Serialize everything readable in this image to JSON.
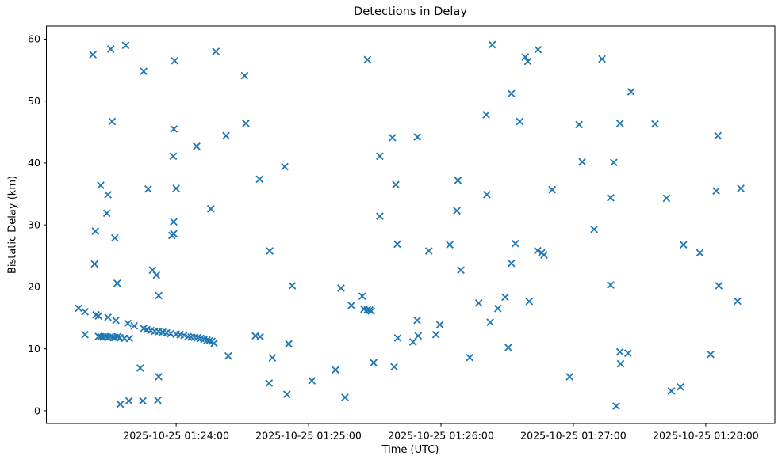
{
  "figure": {
    "title": "Detections in Delay",
    "xlabel": "Time (UTC)",
    "ylabel": "Bistatic Delay (km)"
  },
  "chart_data": {
    "type": "scatter",
    "title": "Detections in Delay",
    "xlabel": "Time (UTC)",
    "ylabel": "Bistatic Delay (km)",
    "marker": "x",
    "marker_color": "#1f77b4",
    "grid": false,
    "legend": null,
    "x_unit": "seconds after 2025-10-25 01:23:00 UTC",
    "xlim_s": [
      1.2,
      331.3
    ],
    "ylim": [
      -2.05,
      62.1
    ],
    "x_ticks": [
      {
        "s": 60,
        "label": "2025-10-25 01:24:00"
      },
      {
        "s": 120,
        "label": "2025-10-25 01:25:00"
      },
      {
        "s": 180,
        "label": "2025-10-25 01:26:00"
      },
      {
        "s": 240,
        "label": "2025-10-25 01:27:00"
      },
      {
        "s": 300,
        "label": "2025-10-25 01:28:00"
      }
    ],
    "y_ticks": [
      0,
      10,
      20,
      30,
      40,
      50,
      60
    ],
    "points_t_s_km": [
      [
        22.3,
        57.5
      ],
      [
        30.4,
        58.4
      ],
      [
        37.1,
        59.0
      ],
      [
        45.3,
        54.8
      ],
      [
        59.3,
        56.5
      ],
      [
        78.0,
        58.0
      ],
      [
        91.0,
        54.1
      ],
      [
        146.7,
        56.7
      ],
      [
        203.2,
        59.1
      ],
      [
        218.2,
        57.1
      ],
      [
        219.4,
        56.4
      ],
      [
        224.0,
        58.3
      ],
      [
        253.0,
        56.8
      ],
      [
        211.9,
        51.2
      ],
      [
        266.1,
        51.5
      ],
      [
        31.0,
        46.7
      ],
      [
        59.0,
        45.5
      ],
      [
        82.6,
        44.4
      ],
      [
        91.6,
        46.4
      ],
      [
        69.3,
        42.7
      ],
      [
        58.7,
        41.1
      ],
      [
        152.3,
        41.1
      ],
      [
        158.0,
        44.1
      ],
      [
        169.3,
        44.2
      ],
      [
        109.2,
        39.4
      ],
      [
        97.8,
        37.4
      ],
      [
        200.5,
        47.8
      ],
      [
        215.7,
        46.7
      ],
      [
        242.6,
        46.2
      ],
      [
        261.1,
        46.4
      ],
      [
        277.0,
        46.3
      ],
      [
        305.5,
        44.4
      ],
      [
        244.0,
        40.2
      ],
      [
        258.3,
        40.1
      ],
      [
        187.7,
        37.2
      ],
      [
        230.4,
        35.7
      ],
      [
        200.8,
        34.9
      ],
      [
        304.7,
        35.5
      ],
      [
        315.9,
        35.9
      ],
      [
        256.9,
        34.4
      ],
      [
        282.2,
        34.3
      ],
      [
        187.2,
        32.3
      ],
      [
        249.4,
        29.3
      ],
      [
        159.5,
        36.5
      ],
      [
        25.8,
        36.4
      ],
      [
        29.1,
        34.9
      ],
      [
        47.3,
        35.8
      ],
      [
        60.0,
        35.9
      ],
      [
        75.7,
        32.6
      ],
      [
        28.6,
        31.9
      ],
      [
        58.9,
        30.5
      ],
      [
        152.3,
        31.4
      ],
      [
        23.4,
        29.0
      ],
      [
        58.9,
        28.6
      ],
      [
        32.2,
        27.9
      ],
      [
        58.1,
        28.3
      ],
      [
        102.4,
        25.8
      ],
      [
        23.0,
        23.7
      ],
      [
        49.3,
        22.7
      ],
      [
        51.1,
        21.9
      ],
      [
        33.3,
        20.6
      ],
      [
        112.6,
        20.2
      ],
      [
        134.7,
        19.8
      ],
      [
        144.3,
        18.5
      ],
      [
        139.4,
        17.0
      ],
      [
        52.1,
        18.6
      ],
      [
        145.1,
        16.4
      ],
      [
        146.6,
        16.3
      ],
      [
        147.7,
        16.25
      ],
      [
        148.4,
        16.1
      ],
      [
        160.2,
        26.9
      ],
      [
        174.5,
        25.8
      ],
      [
        184.0,
        26.8
      ],
      [
        213.7,
        27.0
      ],
      [
        223.8,
        25.85
      ],
      [
        225.6,
        25.5
      ],
      [
        226.7,
        25.15
      ],
      [
        211.9,
        23.8
      ],
      [
        189.0,
        22.7
      ],
      [
        289.9,
        26.8
      ],
      [
        297.3,
        25.5
      ],
      [
        305.9,
        20.2
      ],
      [
        256.9,
        20.3
      ],
      [
        314.4,
        17.7
      ],
      [
        197.1,
        17.4
      ],
      [
        209.1,
        18.35
      ],
      [
        205.8,
        16.5
      ],
      [
        220.0,
        17.65
      ],
      [
        15.8,
        16.55
      ],
      [
        18.7,
        16.0
      ],
      [
        23.7,
        15.5
      ],
      [
        24.8,
        15.3
      ],
      [
        29.1,
        15.1
      ],
      [
        32.7,
        14.6
      ],
      [
        38.1,
        14.1
      ],
      [
        41.0,
        13.7
      ],
      [
        45.3,
        13.3
      ],
      [
        46.7,
        13.1
      ],
      [
        48.5,
        12.95
      ],
      [
        50.3,
        12.85
      ],
      [
        52.1,
        12.8
      ],
      [
        53.9,
        12.7
      ],
      [
        55.7,
        12.6
      ],
      [
        57.5,
        12.45
      ],
      [
        60.0,
        12.35
      ],
      [
        61.8,
        12.3
      ],
      [
        63.6,
        12.2
      ],
      [
        65.4,
        11.95
      ],
      [
        66.8,
        11.9
      ],
      [
        68.3,
        11.85
      ],
      [
        69.7,
        11.8
      ],
      [
        71.1,
        11.7
      ],
      [
        72.6,
        11.55
      ],
      [
        74.0,
        11.4
      ],
      [
        75.1,
        11.3
      ],
      [
        76.2,
        11.2
      ],
      [
        77.2,
        10.9
      ],
      [
        18.7,
        12.3
      ],
      [
        24.8,
        12.0
      ],
      [
        25.9,
        11.95
      ],
      [
        26.9,
        11.9
      ],
      [
        28.0,
        11.95
      ],
      [
        29.1,
        11.8
      ],
      [
        30.2,
        11.95
      ],
      [
        31.3,
        11.9
      ],
      [
        32.3,
        11.8
      ],
      [
        33.4,
        11.95
      ],
      [
        34.5,
        11.8
      ],
      [
        36.6,
        11.7
      ],
      [
        38.8,
        11.7
      ],
      [
        95.9,
        12.1
      ],
      [
        98.1,
        11.95
      ],
      [
        111.0,
        10.8
      ],
      [
        169.7,
        12.1
      ],
      [
        177.7,
        12.3
      ],
      [
        160.4,
        11.75
      ],
      [
        167.3,
        11.1
      ],
      [
        169.2,
        14.6
      ],
      [
        179.5,
        13.9
      ],
      [
        202.3,
        14.3
      ],
      [
        210.5,
        10.2
      ],
      [
        193.0,
        8.6
      ],
      [
        238.3,
        5.5
      ],
      [
        43.7,
        6.9
      ],
      [
        52.1,
        5.5
      ],
      [
        34.7,
        1.05
      ],
      [
        38.6,
        1.6
      ],
      [
        44.9,
        1.6
      ],
      [
        51.7,
        1.7
      ],
      [
        83.6,
        8.85
      ],
      [
        103.6,
        8.55
      ],
      [
        102.1,
        4.45
      ],
      [
        110.2,
        2.65
      ],
      [
        121.5,
        4.85
      ],
      [
        136.5,
        2.15
      ],
      [
        132.2,
        6.6
      ],
      [
        149.5,
        7.75
      ],
      [
        158.8,
        7.1
      ],
      [
        261.1,
        9.5
      ],
      [
        264.7,
        9.3
      ],
      [
        261.4,
        7.6
      ],
      [
        284.4,
        3.2
      ],
      [
        288.5,
        3.85
      ],
      [
        302.2,
        9.1
      ],
      [
        259.4,
        0.75
      ]
    ]
  }
}
